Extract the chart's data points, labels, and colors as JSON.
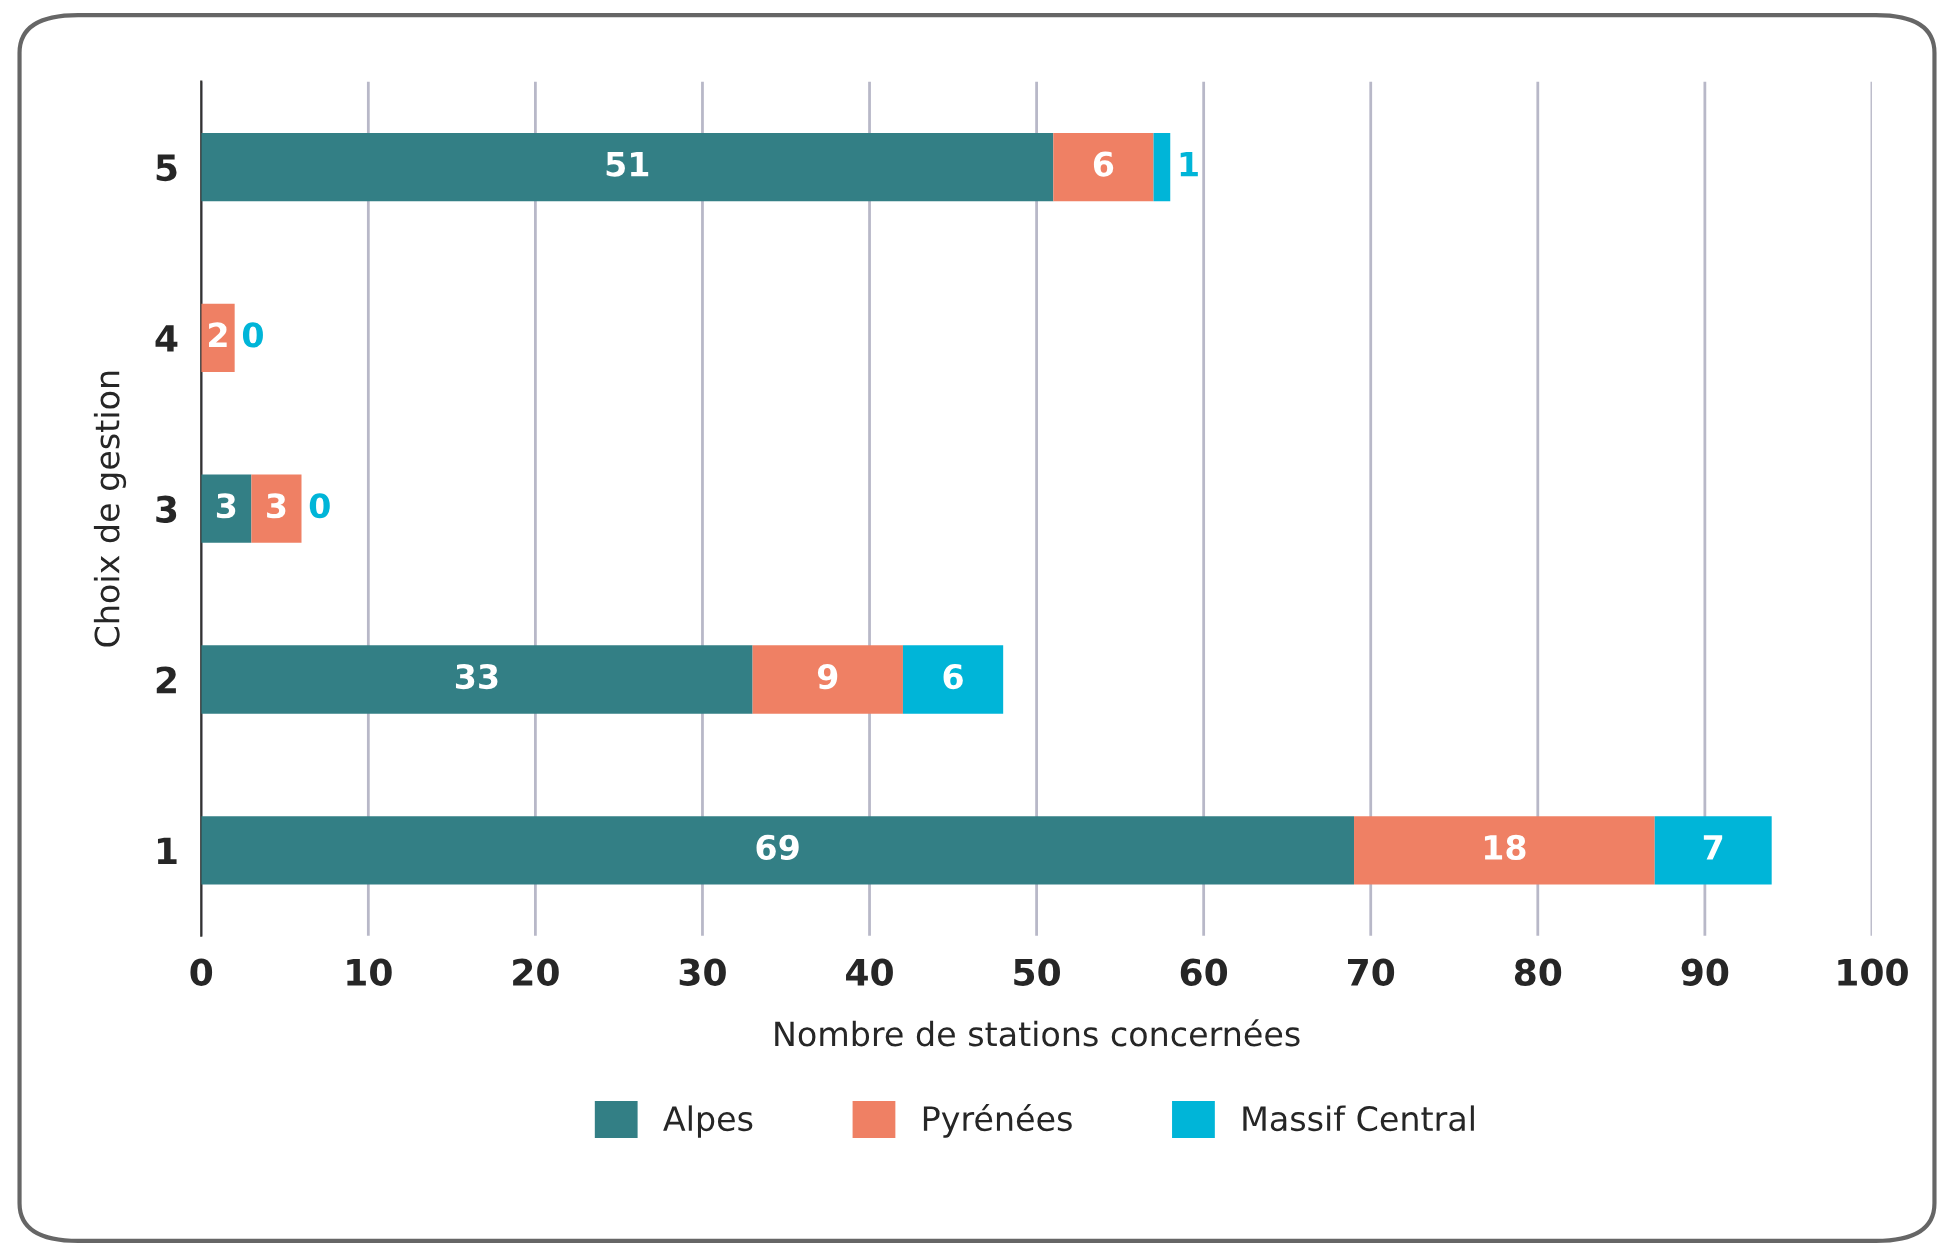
{
  "chart_data": {
    "type": "bar",
    "orientation": "horizontal",
    "stacked": true,
    "categories": [
      "5",
      "4",
      "3",
      "2",
      "1"
    ],
    "series": [
      {
        "name": "Alpes",
        "color": "#337f85",
        "values": [
          51,
          0,
          3,
          33,
          69
        ],
        "value_labels": [
          "51",
          null,
          "3",
          "33",
          "69"
        ]
      },
      {
        "name": "Pyrénées",
        "color": "#ef8064",
        "values": [
          6,
          2,
          3,
          9,
          18
        ],
        "value_labels": [
          "6",
          "2",
          "3",
          "9",
          "18"
        ]
      },
      {
        "name": "Massif Central",
        "color": "#00b5d8",
        "values": [
          1,
          0,
          0,
          6,
          7
        ],
        "value_labels": [
          "1",
          "0",
          "0",
          "6",
          "7"
        ]
      }
    ],
    "xlabel": "Nombre de stations concernées",
    "ylabel": "Choix de gestion",
    "xlim": [
      0,
      100
    ],
    "xticks": [
      0,
      10,
      20,
      30,
      40,
      50,
      60,
      70,
      80,
      90,
      100
    ],
    "grid": "x",
    "legend": "bottom"
  }
}
